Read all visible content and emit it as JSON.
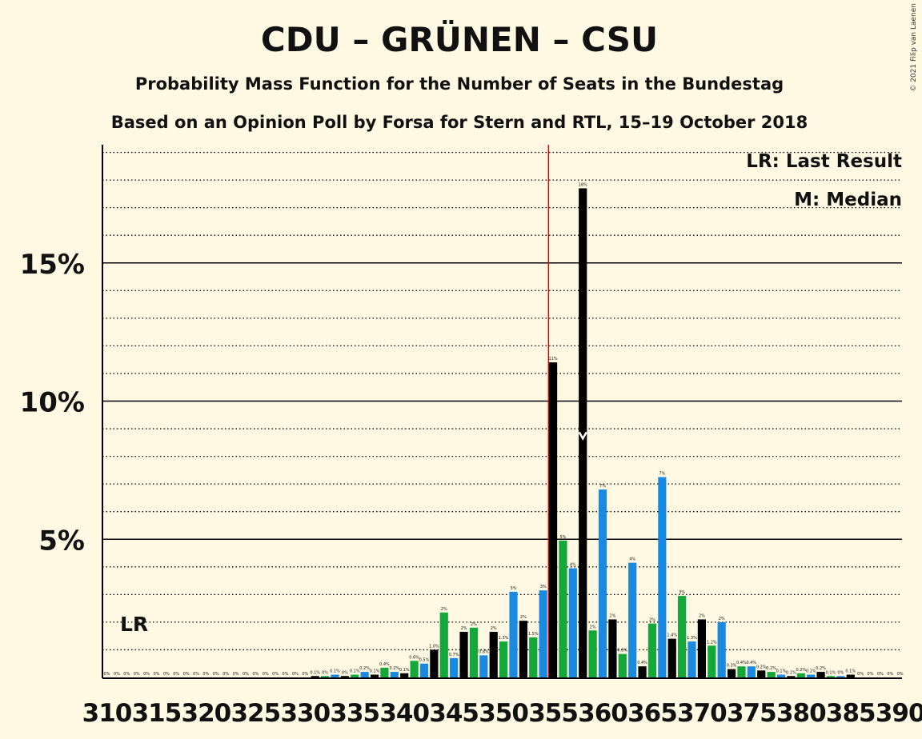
{
  "title": "CDU – GRÜNEN – CSU",
  "subtitle1": "Probability Mass Function for the Number of Seats in the Bundestag",
  "subtitle2": "Based on an Opinion Poll by Forsa for Stern and RTL, 15–19 October 2018",
  "copyright": "© 2021 Filip van Laenen",
  "legend": {
    "lr": "LR: Last Result",
    "median": "M: Median"
  },
  "lr_label": "LR",
  "median_marker": "M",
  "colors": {
    "background": "#FFF8E2",
    "black": "#000000",
    "green": "#14A83B",
    "blue": "#1A8AE0",
    "lr_line": "#E00000"
  },
  "chart_data": {
    "type": "bar",
    "title": "CDU – GRÜNEN – CSU",
    "ylim": [
      0,
      19.2
    ],
    "y_ticks": [
      5,
      10,
      15
    ],
    "y_tick_labels": [
      "5%",
      "10%",
      "15%"
    ],
    "x_tick_labels": [
      "310",
      "315",
      "320",
      "325",
      "330",
      "335",
      "340",
      "345",
      "350",
      "355",
      "360",
      "365",
      "370",
      "375",
      "380",
      "385",
      "390"
    ],
    "last_result_seat": 355,
    "median_seat": 358,
    "seats": [
      310,
      311,
      312,
      313,
      314,
      315,
      316,
      317,
      318,
      319,
      320,
      321,
      322,
      323,
      324,
      325,
      326,
      327,
      328,
      329,
      330,
      331,
      332,
      333,
      334,
      335,
      336,
      337,
      338,
      339,
      340,
      341,
      342,
      343,
      344,
      345,
      346,
      347,
      348,
      349,
      350,
      351,
      352,
      353,
      354,
      355,
      356,
      357,
      358,
      359,
      360,
      361,
      362,
      363,
      364,
      365,
      366,
      367,
      368,
      369,
      370,
      371,
      372,
      373,
      374,
      375,
      376,
      377,
      378,
      379,
      380,
      381,
      382,
      383,
      384,
      385,
      386,
      387,
      388,
      389,
      390
    ],
    "values": [
      0,
      0,
      0,
      0,
      0,
      0,
      0,
      0,
      0,
      0,
      0,
      0,
      0,
      0,
      0,
      0,
      0,
      0,
      0,
      0,
      0,
      0.05,
      0.05,
      0.1,
      0.05,
      0.1,
      0.2,
      0.1,
      0.35,
      0.2,
      0.15,
      0.6,
      0.5,
      1.0,
      2.35,
      0.7,
      1.65,
      1.8,
      0.8,
      1.65,
      1.3,
      3.1,
      2.05,
      1.45,
      3.15,
      11.4,
      4.95,
      3.95,
      17.7,
      1.7,
      6.8,
      2.1,
      0.85,
      4.15,
      0.4,
      1.95,
      7.25,
      1.4,
      2.95,
      1.3,
      2.1,
      1.15,
      2.0,
      0.3,
      0.4,
      0.4,
      0.25,
      0.2,
      0.1,
      0.05,
      0.15,
      0.1,
      0.2,
      0.05,
      0.05,
      0.1,
      0,
      0,
      0,
      0,
      0
    ],
    "value_labels": [
      "0%",
      "0%",
      "0%",
      "0%",
      "0%",
      "0%",
      "0%",
      "0%",
      "0%",
      "0%",
      "0%",
      "0%",
      "0%",
      "0%",
      "0%",
      "0%",
      "0%",
      "0%",
      "0%",
      "0%",
      "0%",
      "0.1%",
      "0%",
      "0.1%",
      "0%",
      "0.1%",
      "0.2%",
      "0.1%",
      "0.4%",
      "0.2%",
      "0.1%",
      "0.6%",
      "0.5%",
      "1.0%",
      "2%",
      "0.7%",
      "2%",
      "2%",
      "0.8%",
      "2%",
      "1.3%",
      "3%",
      "2%",
      "1.5%",
      "3%",
      "11%",
      "5%",
      "4%",
      "18%",
      "2%",
      "7%",
      "2%",
      "0.9%",
      "4%",
      "0.4%",
      "2%",
      "7%",
      "1.4%",
      "3%",
      "1.3%",
      "2%",
      "1.2%",
      "2%",
      "0.3%",
      "0.4%",
      "0.4%",
      "0.2%",
      "0.2%",
      "0.1%",
      "0.1%",
      "0.2%",
      "0.1%",
      "0.2%",
      "0.1%",
      "0%",
      "0.1%",
      "0%",
      "0%",
      "0%",
      "0%",
      "0%"
    ]
  }
}
